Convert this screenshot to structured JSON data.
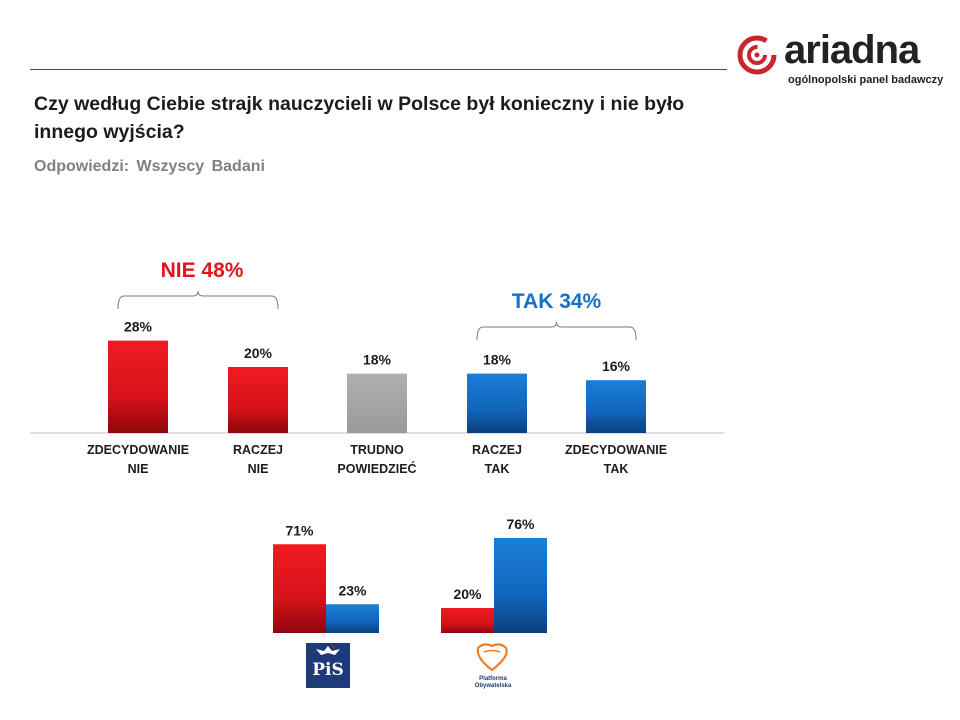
{
  "logo": {
    "name": "ariadna",
    "tagline": "ogólnopolski panel badawczy"
  },
  "question": "Czy według Ciebie strajk nauczycieli w Polsce był konieczny i nie było innego wyjścia?",
  "subtitle": "Odpowiedzi: Wszyscy Badani",
  "colors": {
    "red": "#e2151b",
    "blue": "#1570c8",
    "grey": "#a6a6a6",
    "nie_label": "#e2151b",
    "tak_label": "#1570c8"
  },
  "chart_data": [
    {
      "type": "bar",
      "categories": [
        "ZDECYDOWANIE NIE",
        "RACZEJ NIE",
        "TRUDNO POWIEDZIEĆ",
        "RACZEJ TAK",
        "ZDECYDOWANIE TAK"
      ],
      "values": [
        28,
        20,
        18,
        18,
        16
      ],
      "value_labels": [
        "28%",
        "20%",
        "18%",
        "18%",
        "16%"
      ],
      "bar_colors": [
        "red",
        "red",
        "grey",
        "blue",
        "blue"
      ],
      "groups": [
        {
          "label": "NIE 48%",
          "value": 48,
          "color": "red",
          "members": [
            0,
            1
          ]
        },
        {
          "label": "TAK 34%",
          "value": 34,
          "color": "blue",
          "members": [
            3,
            4
          ]
        }
      ],
      "unit": "%"
    },
    {
      "type": "bar",
      "categories": [
        "PiS",
        "Platforma Obywatelska"
      ],
      "series": [
        {
          "color": "red",
          "values": [
            71,
            20
          ],
          "value_labels": [
            "71%",
            "20%"
          ]
        },
        {
          "color": "blue",
          "values": [
            23,
            76
          ],
          "value_labels": [
            "23%",
            "76%"
          ]
        }
      ],
      "unit": "%"
    }
  ],
  "party_logos": {
    "pis": {
      "text": "PiS"
    },
    "po": {
      "text": "Platforma Obywatelska"
    }
  }
}
